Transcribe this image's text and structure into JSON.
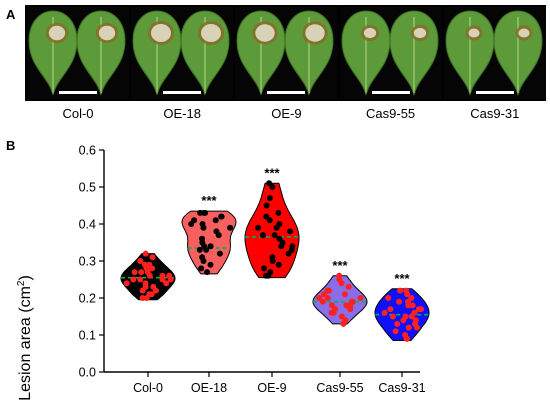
{
  "panels": {
    "a": "A",
    "b": "B"
  },
  "photo_panel": {
    "genotypes": [
      "Col-0",
      "OE-18",
      "OE-9",
      "Cas9-55",
      "Cas9-31"
    ]
  },
  "chart_data": {
    "type": "violin",
    "title": "",
    "xlabel": "",
    "ylabel": "Lesion area (cm",
    "ylabel_superscript": "2",
    "ylabel_close": ")",
    "ylim": [
      0.0,
      0.6
    ],
    "yticks": [
      "0.0",
      "0.1",
      "0.2",
      "0.3",
      "0.4",
      "0.5",
      "0.6"
    ],
    "categories": [
      "Col-0",
      "OE-18",
      "OE-9",
      "Cas9-55",
      "Cas9-31"
    ],
    "significance": [
      "",
      "***",
      "***",
      "***",
      "***"
    ],
    "series": [
      {
        "category": "Col-0",
        "fill": "#000000",
        "dot": "#ff2020",
        "median": 0.255,
        "min": 0.195,
        "max": 0.32,
        "values": [
          0.32,
          0.31,
          0.3,
          0.29,
          0.29,
          0.28,
          0.28,
          0.27,
          0.27,
          0.26,
          0.26,
          0.26,
          0.25,
          0.25,
          0.25,
          0.24,
          0.24,
          0.23,
          0.23,
          0.22,
          0.22,
          0.21,
          0.21,
          0.2,
          0.2,
          0.25,
          0.27,
          0.24
        ]
      },
      {
        "category": "OE-18",
        "fill": "#f86060",
        "dot": "#000000",
        "median": 0.335,
        "min": 0.265,
        "max": 0.435,
        "values": [
          0.43,
          0.43,
          0.42,
          0.42,
          0.41,
          0.4,
          0.4,
          0.39,
          0.38,
          0.37,
          0.36,
          0.35,
          0.34,
          0.34,
          0.33,
          0.33,
          0.32,
          0.31,
          0.3,
          0.29,
          0.28,
          0.27,
          0.43,
          0.41,
          0.39
        ]
      },
      {
        "category": "OE-9",
        "fill": "#ff0000",
        "dot": "#000000",
        "median": 0.365,
        "min": 0.255,
        "max": 0.51,
        "values": [
          0.51,
          0.5,
          0.47,
          0.45,
          0.43,
          0.42,
          0.41,
          0.4,
          0.39,
          0.38,
          0.37,
          0.37,
          0.36,
          0.35,
          0.34,
          0.34,
          0.33,
          0.32,
          0.31,
          0.3,
          0.29,
          0.28,
          0.27,
          0.26,
          0.26,
          0.39
        ]
      },
      {
        "category": "Cas9-55",
        "fill": "#8a6de8",
        "dot": "#ff2020",
        "median": 0.19,
        "min": 0.13,
        "max": 0.26,
        "values": [
          0.26,
          0.25,
          0.24,
          0.23,
          0.22,
          0.21,
          0.21,
          0.2,
          0.2,
          0.19,
          0.19,
          0.19,
          0.18,
          0.18,
          0.17,
          0.17,
          0.16,
          0.16,
          0.15,
          0.14,
          0.13,
          0.2,
          0.22,
          0.18
        ]
      },
      {
        "category": "Cas9-31",
        "fill": "#1010ff",
        "dot": "#ff2020",
        "median": 0.155,
        "min": 0.085,
        "max": 0.225,
        "values": [
          0.22,
          0.22,
          0.21,
          0.2,
          0.2,
          0.19,
          0.19,
          0.18,
          0.18,
          0.17,
          0.17,
          0.16,
          0.16,
          0.15,
          0.15,
          0.14,
          0.14,
          0.13,
          0.13,
          0.12,
          0.12,
          0.11,
          0.1,
          0.09,
          0.09,
          0.15,
          0.17
        ]
      }
    ],
    "median_line_color": "#00b050",
    "grid": false,
    "legend": "none"
  }
}
